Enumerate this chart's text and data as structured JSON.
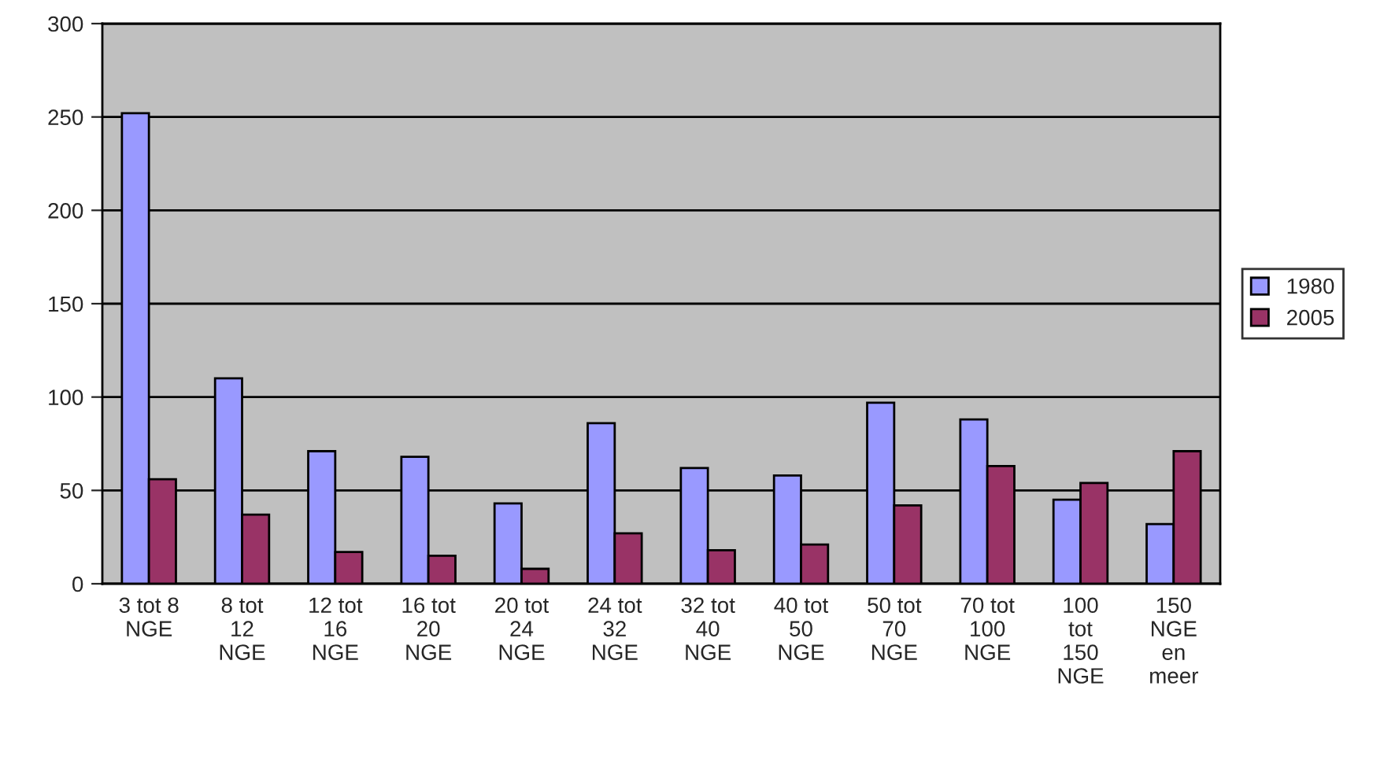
{
  "chart_data": {
    "type": "bar",
    "categories": [
      "3 tot 8\nNGE",
      "8 tot\n12\nNGE",
      "12 tot\n16\nNGE",
      "16 tot\n20\nNGE",
      "20 tot\n24\nNGE",
      "24 tot\n32\nNGE",
      "32 tot\n40\nNGE",
      "40 tot\n50\nNGE",
      "50 tot\n70\nNGE",
      "70 tot\n100\nNGE",
      "100\ntot\n150\nNGE",
      "150\nNGE\nen\nmeer"
    ],
    "series": [
      {
        "name": "1980",
        "color": "#9999ff",
        "values": [
          252,
          110,
          71,
          68,
          43,
          86,
          62,
          58,
          97,
          88,
          45,
          32
        ]
      },
      {
        "name": "2005",
        "color": "#993366",
        "values": [
          56,
          37,
          17,
          15,
          8,
          27,
          18,
          21,
          42,
          63,
          54,
          71
        ]
      }
    ],
    "ylim": [
      0,
      300
    ],
    "yticks": [
      0,
      50,
      100,
      150,
      200,
      250,
      300
    ],
    "grid": "y",
    "legend": "right"
  }
}
